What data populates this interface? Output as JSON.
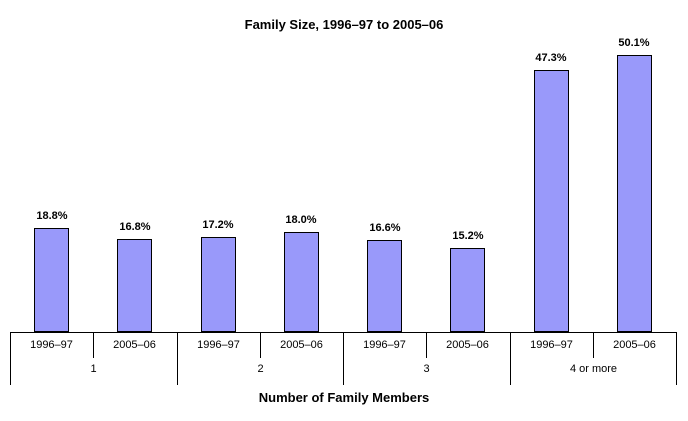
{
  "chart_data": {
    "type": "bar",
    "title": "Family Size, 1996–97 to 2005–06",
    "xlabel": "Number of Family Members",
    "ylabel": "",
    "categories": [
      "1",
      "2",
      "3",
      "4 or more"
    ],
    "series": [
      {
        "name": "1996–97",
        "values": [
          18.8,
          17.2,
          16.6,
          47.3
        ]
      },
      {
        "name": "2005–06",
        "values": [
          16.8,
          18.0,
          15.2,
          50.1
        ]
      }
    ],
    "value_labels": [
      [
        "18.8%",
        "16.8%"
      ],
      [
        "17.2%",
        "18.0%"
      ],
      [
        "16.6%",
        "15.2%"
      ],
      [
        "47.3%",
        "50.1%"
      ]
    ],
    "ylim": [
      0,
      55
    ],
    "unit": "%",
    "grid": false,
    "legend_position": "none",
    "bar_fill_color": "#9999FA",
    "bar_border_color": "#000000",
    "text_color": "#000000"
  }
}
